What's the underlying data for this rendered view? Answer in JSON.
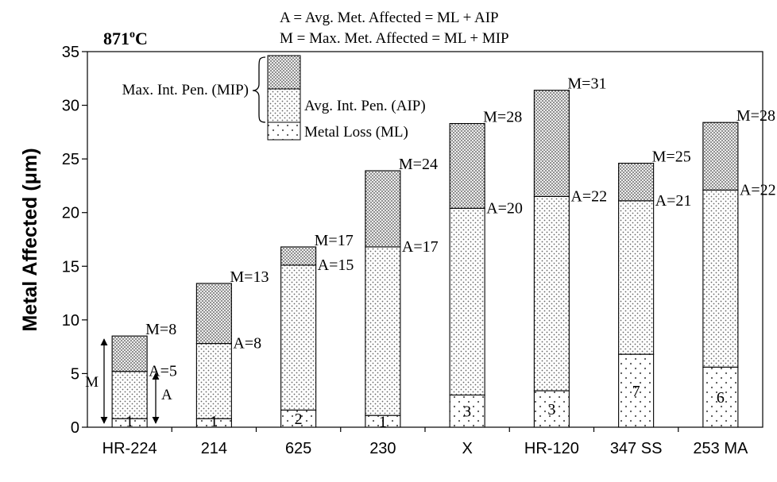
{
  "chart_data": {
    "type": "bar",
    "stacked": true,
    "title": "871°C",
    "title_main": "871",
    "title_sup": "o",
    "title_unit": "C",
    "ylabel": "Metal Affected (μm)",
    "ylim": [
      0,
      35
    ],
    "yticks": [
      0,
      5,
      10,
      15,
      20,
      25,
      30,
      35
    ],
    "categories": [
      "HR-224",
      "214",
      "625",
      "230",
      "X",
      "HR-120",
      "347 SS",
      "253 MA"
    ],
    "series": [
      {
        "name": "Metal Loss (ML)",
        "values": [
          0.8,
          0.8,
          1.6,
          1.1,
          3.0,
          3.4,
          6.8,
          5.6
        ]
      },
      {
        "name": "Avg. Int. Pen. (AIP)",
        "values": [
          4.4,
          7.0,
          13.5,
          15.7,
          17.4,
          18.1,
          14.3,
          16.5
        ]
      },
      {
        "name": "Max. Int. Pen. (MIP)",
        "values": [
          3.3,
          5.6,
          1.7,
          7.1,
          7.9,
          9.9,
          3.5,
          6.3
        ]
      }
    ],
    "ml_labels": [
      "1",
      "1",
      "2",
      "1",
      "3",
      "3",
      "7",
      "6"
    ],
    "a_labels": [
      "A=5",
      "A=8",
      "A=15",
      "A=17",
      "A=20",
      "A=22",
      "A=21",
      "A=22"
    ],
    "m_labels": [
      "M=8",
      "M=13",
      "M=17",
      "M=24",
      "M=28",
      "M=31",
      "M=25",
      "M=28"
    ],
    "definitions": [
      "A = Avg. Met. Affected = ML + AIP",
      "M = Max. Met. Affected = ML + MIP"
    ],
    "legend": {
      "entries": [
        "Max. Int. Pen. (MIP)",
        "Avg. Int. Pen. (AIP)",
        "Metal Loss (ML)"
      ],
      "placement": "top-left"
    },
    "arrow_labels": {
      "M": "M",
      "A": "A"
    },
    "grid": false
  }
}
